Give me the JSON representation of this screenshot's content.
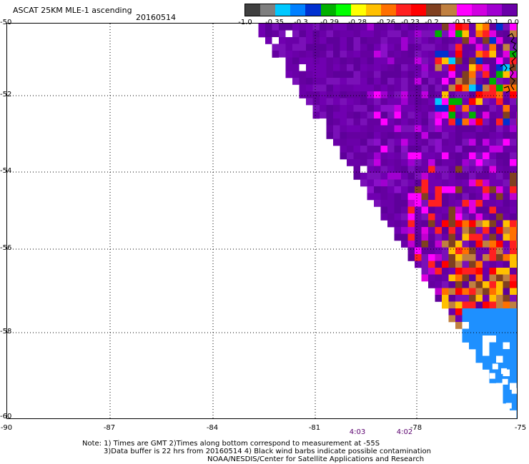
{
  "header": {
    "title": "ASCAT 25KM MLE-1 ascending",
    "date": "20160514"
  },
  "colorbar": {
    "colors": [
      "#404040",
      "#7f7f7f",
      "#00c8ff",
      "#0080ff",
      "#0030d0",
      "#00b000",
      "#00ff00",
      "#ffff00",
      "#ffc000",
      "#ff7000",
      "#ff2020",
      "#ff0000",
      "#804020",
      "#c08040",
      "#ff00ff",
      "#d000e0",
      "#a000d0",
      "#6a00a8"
    ],
    "ticks": [
      "-1.0",
      "-0.35",
      "-0.3",
      "-0.29",
      "-0.28",
      "-0.26",
      "-0.23",
      "-0.2",
      "-0.15",
      "-0.1",
      "0.0"
    ]
  },
  "map": {
    "lat_labels": [
      "-50",
      "-52",
      "-54",
      "-56",
      "-58",
      "-60"
    ],
    "lon_labels": [
      "-90",
      "-87",
      "-84",
      "-81",
      "-78",
      "-75"
    ],
    "lat_range": [
      -60,
      -50
    ],
    "lon_range": [
      -90,
      -75
    ],
    "grid": "dotted",
    "coastline_color": "#000000",
    "swath_base_color": "#6a00a8",
    "swath_edge_color": "#8a10c8",
    "land_color": "#1e90ff"
  },
  "times": [
    "4:03",
    "4:02"
  ],
  "notes": {
    "line1": "Note: 1) Times are GMT 2)Times along bottom correspond to measurement at -55S",
    "line2": "3)Data buffer is 22 hrs from 20160514 4) Black wind barbs indicate possible contamination",
    "line3": "NOAA/NESDIS/Center for Satellite Applications and Research"
  }
}
